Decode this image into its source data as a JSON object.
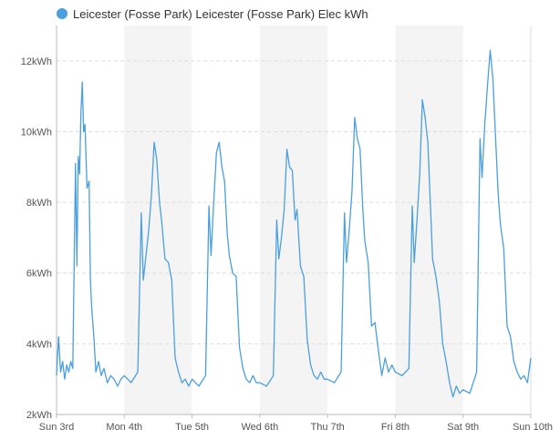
{
  "chart_data": {
    "type": "line",
    "title": "",
    "xlabel": "",
    "ylabel": "",
    "ylim": [
      2,
      13
    ],
    "legend": {
      "position": "top-left"
    },
    "grid": {
      "y": true,
      "x": false,
      "alternate_day_bands": true
    },
    "colors": {
      "series": "#4a9fe0",
      "band": "#f4f4f4",
      "grid": "#dddddd",
      "axis": "#bbbbbb"
    },
    "y_ticks": [
      {
        "value": 2,
        "label": "2kWh"
      },
      {
        "value": 4,
        "label": "4kWh"
      },
      {
        "value": 6,
        "label": "6kWh"
      },
      {
        "value": 8,
        "label": "8kWh"
      },
      {
        "value": 10,
        "label": "10kWh"
      },
      {
        "value": 12,
        "label": "12kWh"
      }
    ],
    "x_ticks": [
      {
        "value": 0,
        "label": "Sun 3rd"
      },
      {
        "value": 1,
        "label": "Mon 4th"
      },
      {
        "value": 2,
        "label": "Tue 5th"
      },
      {
        "value": 3,
        "label": "Wed 6th"
      },
      {
        "value": 4,
        "label": "Thu 7th"
      },
      {
        "value": 5,
        "label": "Fri 8th"
      },
      {
        "value": 6,
        "label": "Sat 9th"
      },
      {
        "value": 7,
        "label": "Sun 10th"
      }
    ],
    "series": [
      {
        "name": "Leicester (Fosse Park) Leicester (Fosse Park) Elec kWh",
        "x": [
          0,
          0.03,
          0.06,
          0.09,
          0.12,
          0.15,
          0.18,
          0.21,
          0.24,
          0.28,
          0.3,
          0.32,
          0.34,
          0.36,
          0.38,
          0.4,
          0.42,
          0.45,
          0.48,
          0.5,
          0.52,
          0.55,
          0.58,
          0.62,
          0.66,
          0.7,
          0.75,
          0.8,
          0.85,
          0.9,
          0.95,
          1.0,
          1.1,
          1.2,
          1.25,
          1.28,
          1.32,
          1.36,
          1.4,
          1.44,
          1.48,
          1.52,
          1.55,
          1.6,
          1.65,
          1.7,
          1.75,
          1.8,
          1.85,
          1.9,
          1.95,
          2.0,
          2.1,
          2.2,
          2.25,
          2.28,
          2.32,
          2.36,
          2.4,
          2.44,
          2.48,
          2.52,
          2.55,
          2.6,
          2.65,
          2.7,
          2.75,
          2.8,
          2.85,
          2.9,
          2.95,
          3.0,
          3.1,
          3.2,
          3.25,
          3.28,
          3.32,
          3.36,
          3.4,
          3.44,
          3.48,
          3.52,
          3.55,
          3.6,
          3.65,
          3.7,
          3.75,
          3.8,
          3.85,
          3.9,
          3.95,
          4.0,
          4.1,
          4.2,
          4.25,
          4.28,
          4.32,
          4.36,
          4.4,
          4.44,
          4.48,
          4.52,
          4.55,
          4.6,
          4.65,
          4.7,
          4.75,
          4.8,
          4.85,
          4.9,
          4.95,
          5.0,
          5.1,
          5.2,
          5.25,
          5.28,
          5.32,
          5.36,
          5.4,
          5.44,
          5.48,
          5.52,
          5.55,
          5.6,
          5.65,
          5.7,
          5.75,
          5.8,
          5.85,
          5.9,
          5.95,
          6.0,
          6.1,
          6.2,
          6.25,
          6.28,
          6.32,
          6.36,
          6.4,
          6.44,
          6.48,
          6.52,
          6.55,
          6.6,
          6.65,
          6.7,
          6.75,
          6.8,
          6.85,
          6.9,
          6.95,
          7.0
        ],
        "values": [
          3.1,
          4.2,
          3.2,
          3.5,
          3.0,
          3.4,
          3.2,
          3.5,
          3.3,
          9.1,
          6.2,
          9.3,
          8.8,
          10.5,
          11.4,
          10.0,
          10.2,
          8.4,
          8.6,
          5.8,
          5.0,
          4.2,
          3.2,
          3.5,
          3.1,
          3.3,
          2.9,
          3.1,
          3.0,
          2.8,
          3.0,
          3.1,
          2.9,
          3.2,
          7.7,
          5.8,
          6.5,
          7.2,
          8.2,
          9.7,
          9.2,
          8.0,
          7.5,
          6.4,
          6.3,
          5.8,
          3.6,
          3.2,
          2.9,
          3.0,
          2.8,
          3.0,
          2.8,
          3.1,
          7.9,
          6.5,
          8.0,
          9.4,
          9.7,
          9.0,
          8.6,
          7.1,
          6.5,
          6.0,
          5.9,
          3.9,
          3.3,
          3.0,
          2.9,
          3.1,
          2.9,
          2.9,
          2.8,
          3.1,
          7.5,
          6.4,
          7.0,
          7.8,
          9.5,
          9.0,
          8.9,
          7.5,
          7.8,
          6.2,
          5.9,
          4.1,
          3.4,
          3.1,
          3.0,
          3.2,
          3.0,
          3.0,
          2.9,
          3.2,
          7.7,
          6.3,
          7.2,
          8.3,
          10.4,
          9.8,
          9.5,
          7.8,
          6.9,
          6.3,
          4.5,
          4.6,
          3.8,
          3.1,
          3.6,
          3.2,
          3.4,
          3.2,
          3.1,
          3.3,
          7.9,
          6.3,
          7.5,
          8.8,
          10.9,
          10.4,
          9.7,
          7.8,
          6.4,
          5.9,
          5.2,
          4.0,
          3.5,
          2.9,
          2.5,
          2.8,
          2.6,
          2.7,
          2.6,
          3.2,
          9.8,
          8.7,
          10.2,
          11.3,
          12.3,
          11.5,
          9.8,
          8.2,
          7.4,
          6.7,
          4.5,
          4.2,
          3.5,
          3.2,
          3.0,
          3.1,
          2.9,
          3.6
        ]
      }
    ]
  }
}
